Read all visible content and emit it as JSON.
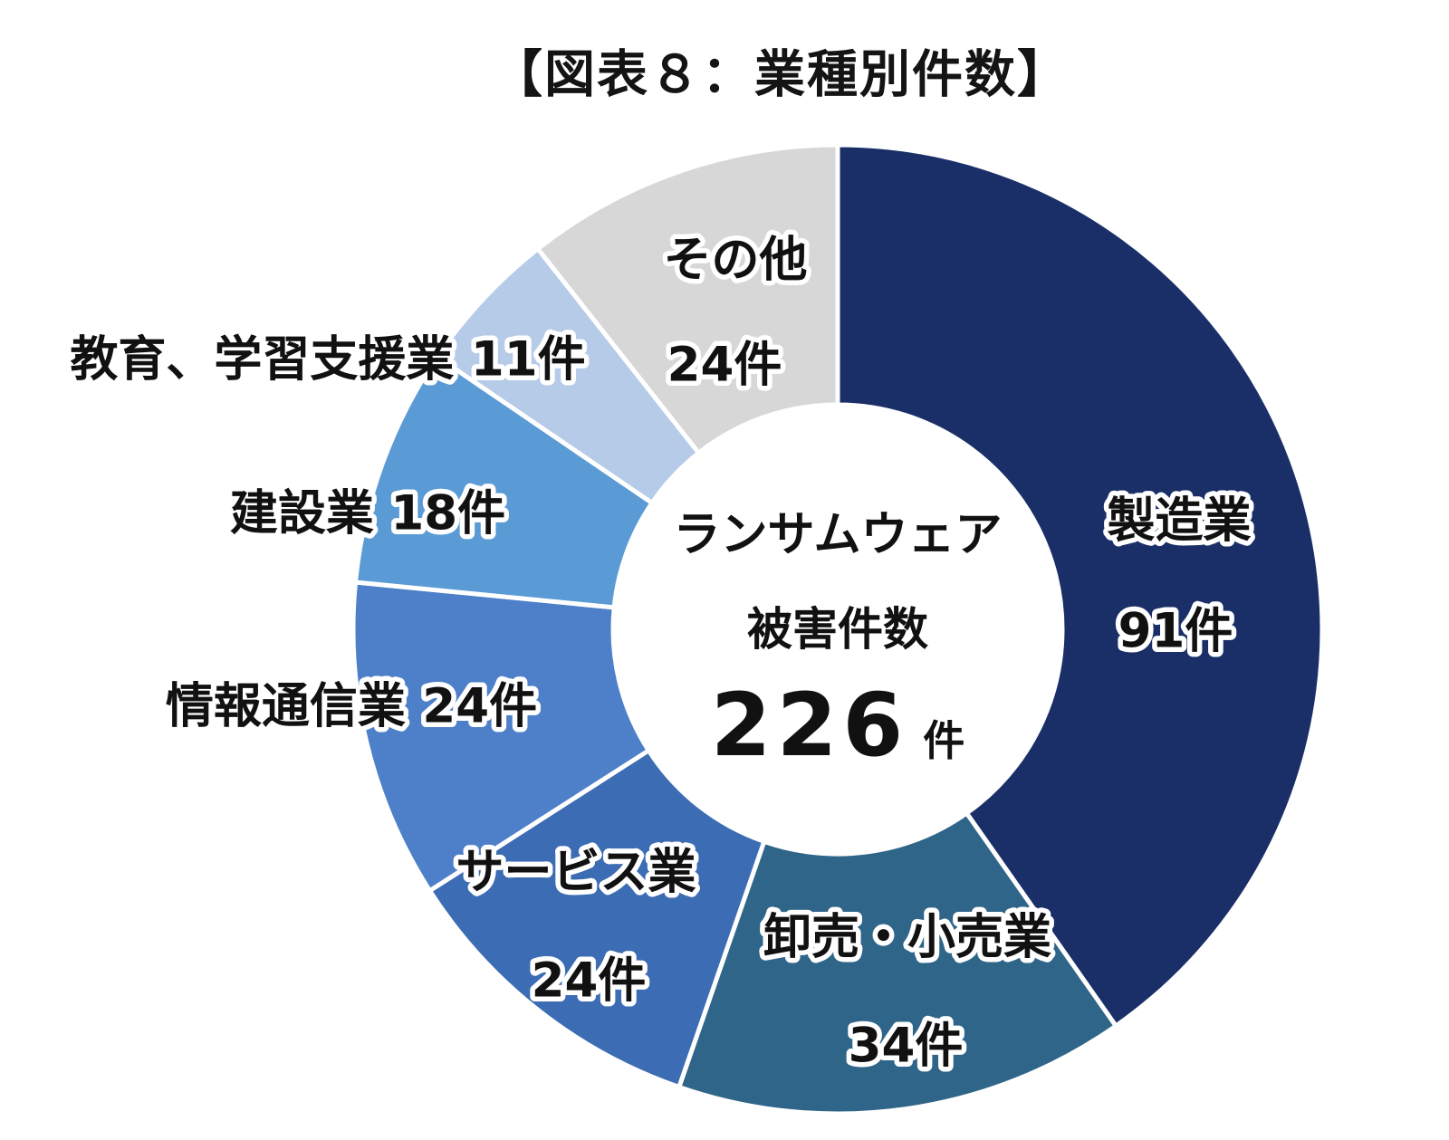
{
  "title": {
    "text": "【図表８：業種別件数】"
  },
  "center": {
    "line1": "ランサムウェア",
    "line2": "被害件数",
    "value": "226",
    "unit": "件"
  },
  "chart_data": {
    "type": "pie",
    "subtype": "donut",
    "title": "【図表８：業種別件数】",
    "center_text": "ランサムウェア被害件数 226件",
    "total": 226,
    "unit": "件",
    "start_angle_deg": 0,
    "direction": "clockwise",
    "legend": "none",
    "segments": [
      {
        "label": "製造業",
        "value": 91,
        "value_label": "91件",
        "color": "#1a2f68"
      },
      {
        "label": "卸売・小売業",
        "value": 34,
        "value_label": "34件",
        "color": "#2f6588"
      },
      {
        "label": "サービス業",
        "value": 24,
        "value_label": "24件",
        "color": "#3c6cb3"
      },
      {
        "label": "情報通信業",
        "value": 24,
        "value_label": "24件",
        "color": "#4d80c8"
      },
      {
        "label": "建設業",
        "value": 18,
        "value_label": "18件",
        "color": "#5b9bd5"
      },
      {
        "label": "教育、学習支援業",
        "value": 11,
        "value_label": "11件",
        "color": "#b5cbe8"
      },
      {
        "label": "その他",
        "value": 24,
        "value_label": "24件",
        "color": "#d7d7d7"
      }
    ]
  }
}
